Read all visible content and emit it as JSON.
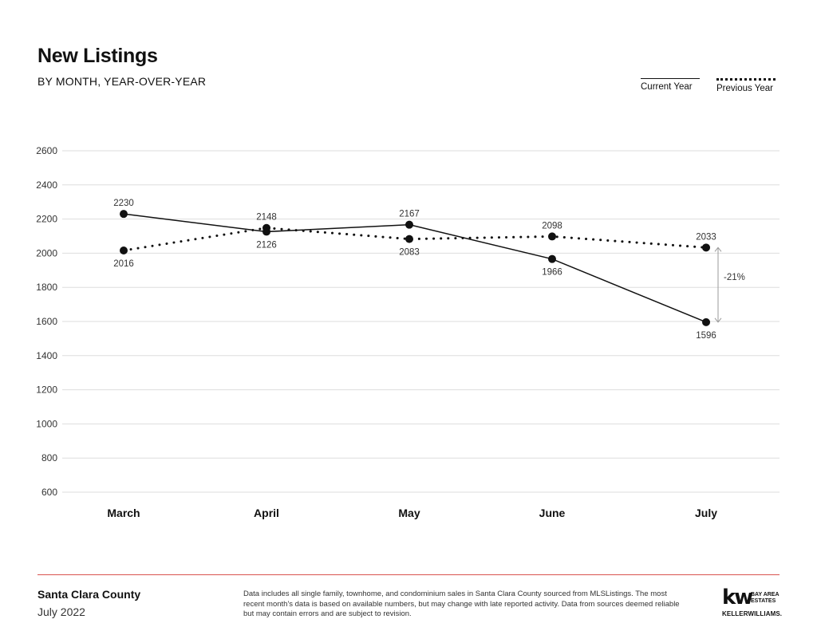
{
  "header": {
    "title": "New Listings",
    "subtitle": "BY MONTH, YEAR-OVER-YEAR"
  },
  "legend": {
    "current": "Current Year",
    "previous": "Previous Year"
  },
  "chart_data": {
    "type": "line",
    "categories": [
      "March",
      "April",
      "May",
      "June",
      "July"
    ],
    "series": [
      {
        "name": "Current Year",
        "style": "solid",
        "values": [
          2230,
          2126,
          2167,
          1966,
          1596
        ]
      },
      {
        "name": "Previous Year",
        "style": "dotted",
        "values": [
          2016,
          2148,
          2083,
          2098,
          2033
        ]
      }
    ],
    "yticks": [
      600,
      800,
      1000,
      1200,
      1400,
      1600,
      1800,
      2000,
      2200,
      2400,
      2600
    ],
    "ylim": [
      600,
      2600
    ],
    "grid": true,
    "legend_position": "top-right",
    "annotation": {
      "text": "-21%",
      "category": "July",
      "from": 2033,
      "to": 1596
    },
    "line_color": "#111111"
  },
  "footer": {
    "county": "Santa Clara County",
    "date": "July 2022",
    "disclaimer": "Data includes all single family, townhome, and condominium sales in Santa Clara County sourced from MLSListings. The most recent month's data is based on available numbers, but may change with late reported activity. Data from sources deemed reliable but may contain errors and are subject to revision.",
    "accent_color": "#d9534f"
  },
  "logo": {
    "mark": "kw",
    "tag_line1": "BAY AREA",
    "tag_line2": "ESTATES",
    "brand": "KELLERWILLIAMS."
  }
}
